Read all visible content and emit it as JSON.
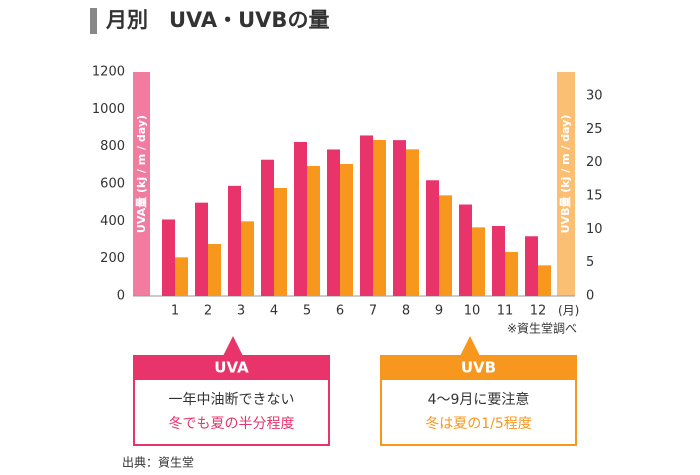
{
  "chart_data": {
    "type": "bar",
    "title": "月別　UVA・UVBの量",
    "categories": [
      "1",
      "2",
      "3",
      "4",
      "5",
      "6",
      "7",
      "8",
      "9",
      "10",
      "11",
      "12"
    ],
    "month_unit": "(月)",
    "series": [
      {
        "name": "UVA",
        "color": "#e8336b",
        "values": [
          410,
          500,
          590,
          730,
          825,
          785,
          860,
          835,
          620,
          490,
          375,
          320
        ]
      },
      {
        "name": "UVB",
        "color": "#f7971e",
        "axis": "y2",
        "values": [
          5.8,
          7.8,
          11.2,
          16.2,
          19.5,
          19.8,
          23.4,
          22.0,
          15.1,
          10.3,
          6.6,
          4.6
        ]
      }
    ],
    "ylabel": "UVA量 (kj / m / day)",
    "y2label": "UVB量 (kj / m / day)",
    "ylim": [
      0,
      1200
    ],
    "yticks": [
      0,
      200,
      400,
      600,
      800,
      1000,
      1200
    ],
    "y2lim": [
      0,
      33.6
    ],
    "y2ticks": [
      0,
      5,
      10,
      15,
      20,
      25,
      30
    ],
    "note": "※資生堂調べ",
    "callouts": [
      {
        "title": "UVA",
        "line1": "一年中油断できない",
        "line2": "冬でも夏の半分程度"
      },
      {
        "title": "UVB",
        "line1": "4〜9月に要注意",
        "line2": "冬は夏の1/5程度"
      }
    ],
    "source": "出典：資生堂"
  }
}
